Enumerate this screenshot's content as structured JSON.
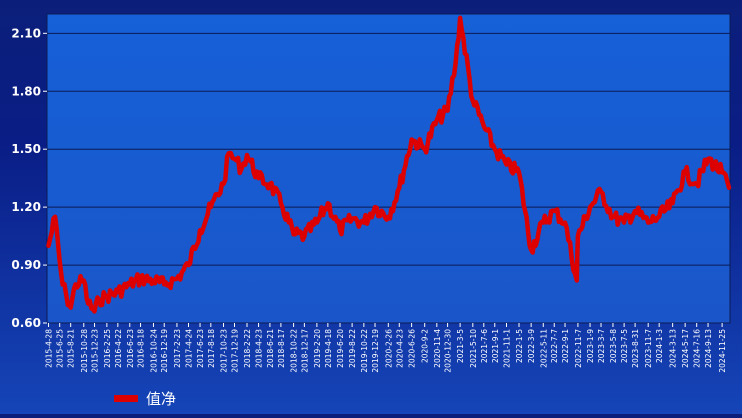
{
  "chart_data": {
    "type": "line",
    "title": "",
    "xlabel": "",
    "ylabel": "",
    "ylim": [
      0.6,
      2.2
    ],
    "y_ticks": [
      0.6,
      0.9,
      1.2,
      1.5,
      1.8,
      2.1
    ],
    "y_tick_labels": [
      "0.60",
      "0.90",
      "1.20",
      "1.50",
      "1.80",
      "2.10"
    ],
    "grid": true,
    "legend_position": "bottom-left",
    "colors": {
      "line": "#dd0000",
      "grid": "#0b1a55",
      "plot_background": "#1a5fd0",
      "axis_text": "#ffffff"
    },
    "x_tick_labels": [
      "2015-4-28",
      "2015-6-25",
      "2015-8-21",
      "2015-10-28",
      "2015-12-23",
      "2016-2-25",
      "2016-4-22",
      "2016-6-23",
      "2016-8-18",
      "2016-10-24",
      "2016-12-19",
      "2017-2-23",
      "2017-4-24",
      "2017-6-23",
      "2017-8-18",
      "2017-10-23",
      "2017-12-19",
      "2018-2-22",
      "2018-4-23",
      "2018-6-21",
      "2018-8-17",
      "2018-10-22",
      "2018-12-17",
      "2019-2-20",
      "2019-4-18",
      "2019-6-20",
      "2019-8-22",
      "2019-10-22",
      "2019-12-19",
      "2020-2-26",
      "2020-4-23",
      "2020-6-26",
      "2020-9-2",
      "2020-11-4",
      "2020-12-30",
      "2021-3-5",
      "2021-5-10",
      "2021-7-6",
      "2021-9-1",
      "2021-11-1",
      "2022-1-5",
      "2022-3-9",
      "2022-5-11",
      "2022-7-7",
      "2022-9-1",
      "2022-11-7",
      "2023-1-9",
      "2023-3-7",
      "2023-5-8",
      "2023-7-5",
      "2023-8-31",
      "2023-11-7",
      "2024-1-3",
      "2024-3-13",
      "2024-5-17",
      "2024-7-16",
      "2024-9-13",
      "2024-11-25"
    ],
    "series": [
      {
        "name": "值净",
        "x": [
          "2015-4-28",
          "2015-6-1",
          "2015-6-25",
          "2015-7-10",
          "2015-7-30",
          "2015-8-21",
          "2015-9-15",
          "2015-10-28",
          "2015-11-20",
          "2015-12-23",
          "2016-1-15",
          "2016-2-25",
          "2016-4-22",
          "2016-6-23",
          "2016-8-18",
          "2016-10-24",
          "2016-12-19",
          "2017-2-23",
          "2017-4-24",
          "2017-6-23",
          "2017-8-18",
          "2017-10-23",
          "2017-11-20",
          "2017-12-19",
          "2018-1-25",
          "2018-2-22",
          "2018-4-23",
          "2018-6-21",
          "2018-8-17",
          "2018-10-22",
          "2018-12-17",
          "2019-2-20",
          "2019-4-18",
          "2019-6-20",
          "2019-8-22",
          "2019-10-22",
          "2019-12-19",
          "2020-2-26",
          "2020-4-23",
          "2020-6-26",
          "2020-9-2",
          "2020-11-4",
          "2020-12-30",
          "2021-2-10",
          "2021-3-5",
          "2021-5-10",
          "2021-7-6",
          "2021-9-1",
          "2021-11-1",
          "2022-1-5",
          "2022-3-9",
          "2022-5-11",
          "2022-7-7",
          "2022-9-1",
          "2022-11-1",
          "2022-11-7",
          "2023-1-9",
          "2023-3-7",
          "2023-5-8",
          "2023-7-5",
          "2023-8-31",
          "2023-11-7",
          "2024-1-3",
          "2024-3-13",
          "2024-5-17",
          "2024-7-16",
          "2024-9-13",
          "2024-11-25",
          "2024-12-31"
        ],
        "values": [
          1.0,
          1.15,
          0.92,
          0.8,
          0.74,
          0.68,
          0.8,
          0.82,
          0.7,
          0.66,
          0.72,
          0.74,
          0.76,
          0.8,
          0.83,
          0.82,
          0.8,
          0.83,
          0.9,
          1.08,
          1.2,
          1.32,
          1.48,
          1.45,
          1.4,
          1.47,
          1.35,
          1.32,
          1.22,
          1.06,
          1.05,
          1.12,
          1.22,
          1.08,
          1.14,
          1.12,
          1.2,
          1.15,
          1.3,
          1.55,
          1.5,
          1.65,
          1.7,
          1.95,
          2.18,
          1.75,
          1.62,
          1.5,
          1.42,
          1.38,
          0.98,
          1.12,
          1.18,
          1.12,
          0.82,
          1.05,
          1.2,
          1.28,
          1.15,
          1.12,
          1.18,
          1.12,
          1.15,
          1.22,
          1.38,
          1.32,
          1.45,
          1.38,
          1.3
        ]
      }
    ]
  },
  "legend": {
    "label": "值净"
  }
}
